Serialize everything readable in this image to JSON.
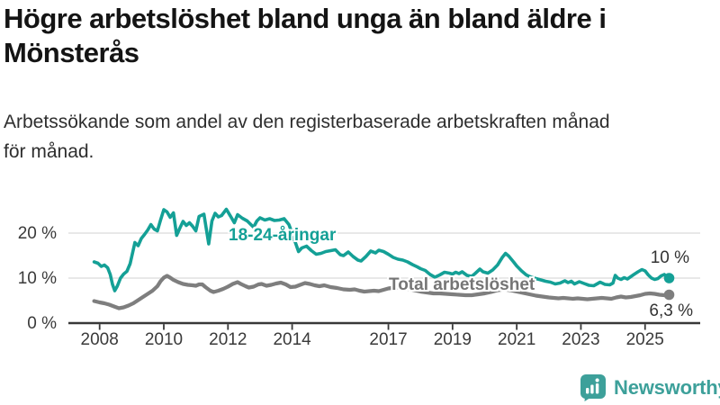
{
  "header": {
    "title_line1": "Högre arbetslöshet bland unga än bland äldre i",
    "title_line2": "Mönsterås",
    "subtitle_line1": "Arbetssökande som andel av den registerbaserade arbetskraften månad",
    "subtitle_line2": "för månad."
  },
  "footer": {
    "brand": "Newsworthy",
    "brand_color": "#3da09a"
  },
  "chart_data": {
    "type": "line",
    "title": "Högre arbetslöshet bland unga än bland äldre i Mönsterås",
    "subtitle": "Arbetssökande som andel av den registerbaserade arbetskraften månad för månad.",
    "xlabel": "",
    "ylabel": "",
    "unit": "%",
    "grid": "horizontal",
    "grid_color": "#d9d9d9",
    "axis_color": "#383838",
    "xlim": [
      2007.7,
      2026.1
    ],
    "ylim": [
      0,
      27
    ],
    "x_ticks": [
      2008,
      2010,
      2012,
      2014,
      2017,
      2019,
      2021,
      2023,
      2025
    ],
    "y_ticks": [
      {
        "value": 0,
        "label": "0 %"
      },
      {
        "value": 10,
        "label": "10 %"
      },
      {
        "value": 20,
        "label": "20 %"
      }
    ],
    "legend": "inline-labels",
    "series": [
      {
        "name": "18-24-åringar",
        "color": "#14a096",
        "end_label": "10 %",
        "last_value": "10 %",
        "points": [
          [
            2007.83,
            13.6
          ],
          [
            2007.95,
            13.3
          ],
          [
            2008.05,
            12.6
          ],
          [
            2008.15,
            12.9
          ],
          [
            2008.25,
            12.3
          ],
          [
            2008.33,
            10.8
          ],
          [
            2008.4,
            8.6
          ],
          [
            2008.47,
            7.2
          ],
          [
            2008.55,
            8.2
          ],
          [
            2008.65,
            10.0
          ],
          [
            2008.75,
            10.9
          ],
          [
            2008.85,
            11.5
          ],
          [
            2008.95,
            13.2
          ],
          [
            2009.1,
            17.9
          ],
          [
            2009.2,
            17.2
          ],
          [
            2009.3,
            18.8
          ],
          [
            2009.4,
            19.7
          ],
          [
            2009.5,
            20.7
          ],
          [
            2009.6,
            21.9
          ],
          [
            2009.7,
            20.9
          ],
          [
            2009.8,
            20.5
          ],
          [
            2009.9,
            22.9
          ],
          [
            2010.0,
            25.2
          ],
          [
            2010.1,
            24.7
          ],
          [
            2010.2,
            23.5
          ],
          [
            2010.3,
            24.5
          ],
          [
            2010.4,
            19.5
          ],
          [
            2010.5,
            21.1
          ],
          [
            2010.6,
            22.6
          ],
          [
            2010.7,
            21.7
          ],
          [
            2010.8,
            22.3
          ],
          [
            2010.9,
            21.5
          ],
          [
            2011.0,
            20.5
          ],
          [
            2011.1,
            23.7
          ],
          [
            2011.25,
            24.2
          ],
          [
            2011.4,
            17.6
          ],
          [
            2011.5,
            22.7
          ],
          [
            2011.6,
            24.4
          ],
          [
            2011.7,
            23.6
          ],
          [
            2011.8,
            23.9
          ],
          [
            2011.95,
            25.3
          ],
          [
            2012.1,
            23.5
          ],
          [
            2012.2,
            22.3
          ],
          [
            2012.3,
            24.1
          ],
          [
            2012.45,
            23.3
          ],
          [
            2012.6,
            22.7
          ],
          [
            2012.8,
            21.3
          ],
          [
            2012.9,
            22.7
          ],
          [
            2013.0,
            23.4
          ],
          [
            2013.15,
            22.9
          ],
          [
            2013.3,
            23.2
          ],
          [
            2013.45,
            22.8
          ],
          [
            2013.6,
            22.9
          ],
          [
            2013.75,
            23.2
          ],
          [
            2013.9,
            21.9
          ],
          [
            2014.0,
            20.0
          ],
          [
            2014.1,
            17.9
          ],
          [
            2014.2,
            15.9
          ],
          [
            2014.3,
            16.7
          ],
          [
            2014.45,
            17.1
          ],
          [
            2014.6,
            16.1
          ],
          [
            2014.75,
            15.3
          ],
          [
            2014.9,
            15.5
          ],
          [
            2015.05,
            15.9
          ],
          [
            2015.2,
            16.1
          ],
          [
            2015.35,
            16.3
          ],
          [
            2015.5,
            15.2
          ],
          [
            2015.6,
            15.0
          ],
          [
            2015.75,
            15.8
          ],
          [
            2015.9,
            14.8
          ],
          [
            2016.05,
            14.0
          ],
          [
            2016.15,
            13.8
          ],
          [
            2016.3,
            14.8
          ],
          [
            2016.45,
            16.0
          ],
          [
            2016.6,
            15.6
          ],
          [
            2016.7,
            16.2
          ],
          [
            2016.85,
            15.9
          ],
          [
            2017.0,
            15.3
          ],
          [
            2017.15,
            14.6
          ],
          [
            2017.3,
            14.2
          ],
          [
            2017.45,
            14.0
          ],
          [
            2017.6,
            13.6
          ],
          [
            2017.75,
            13.0
          ],
          [
            2017.9,
            12.5
          ],
          [
            2018.0,
            12.1
          ],
          [
            2018.15,
            11.7
          ],
          [
            2018.3,
            10.8
          ],
          [
            2018.45,
            10.2
          ],
          [
            2018.6,
            10.7
          ],
          [
            2018.75,
            11.3
          ],
          [
            2018.9,
            11.1
          ],
          [
            2019.0,
            10.9
          ],
          [
            2019.1,
            11.3
          ],
          [
            2019.2,
            11.0
          ],
          [
            2019.3,
            11.4
          ],
          [
            2019.45,
            10.6
          ],
          [
            2019.6,
            10.4
          ],
          [
            2019.7,
            11.0
          ],
          [
            2019.85,
            12.0
          ],
          [
            2019.95,
            11.4
          ],
          [
            2020.1,
            11.1
          ],
          [
            2020.25,
            11.8
          ],
          [
            2020.4,
            12.9
          ],
          [
            2020.55,
            14.6
          ],
          [
            2020.65,
            15.5
          ],
          [
            2020.75,
            14.9
          ],
          [
            2020.9,
            13.6
          ],
          [
            2021.0,
            12.7
          ],
          [
            2021.15,
            11.6
          ],
          [
            2021.3,
            10.7
          ],
          [
            2021.45,
            10.2
          ],
          [
            2021.6,
            9.9
          ],
          [
            2021.75,
            9.6
          ],
          [
            2021.9,
            9.3
          ],
          [
            2022.05,
            9.1
          ],
          [
            2022.2,
            8.7
          ],
          [
            2022.35,
            8.9
          ],
          [
            2022.5,
            9.4
          ],
          [
            2022.6,
            9.0
          ],
          [
            2022.7,
            9.3
          ],
          [
            2022.8,
            8.7
          ],
          [
            2022.95,
            9.2
          ],
          [
            2023.1,
            8.8
          ],
          [
            2023.25,
            8.4
          ],
          [
            2023.4,
            8.3
          ],
          [
            2023.5,
            8.7
          ],
          [
            2023.6,
            9.1
          ],
          [
            2023.75,
            8.6
          ],
          [
            2023.9,
            8.5
          ],
          [
            2024.0,
            8.9
          ],
          [
            2024.07,
            10.6
          ],
          [
            2024.15,
            10.0
          ],
          [
            2024.25,
            9.7
          ],
          [
            2024.35,
            10.1
          ],
          [
            2024.45,
            9.8
          ],
          [
            2024.55,
            10.3
          ],
          [
            2024.65,
            10.8
          ],
          [
            2024.78,
            11.4
          ],
          [
            2024.9,
            11.9
          ],
          [
            2025.0,
            11.6
          ],
          [
            2025.1,
            10.7
          ],
          [
            2025.2,
            10.0
          ],
          [
            2025.3,
            9.7
          ],
          [
            2025.4,
            9.9
          ],
          [
            2025.5,
            10.5
          ],
          [
            2025.6,
            10.8
          ],
          [
            2025.68,
            10.3
          ],
          [
            2025.75,
            10.0
          ]
        ]
      },
      {
        "name": "Total arbetslöshet",
        "color": "#7e7e7e",
        "label_color": "#757575",
        "end_label": "6,3 %",
        "last_value": "6,3 %",
        "points": [
          [
            2007.83,
            4.9
          ],
          [
            2008.0,
            4.6
          ],
          [
            2008.15,
            4.4
          ],
          [
            2008.3,
            4.1
          ],
          [
            2008.45,
            3.7
          ],
          [
            2008.6,
            3.3
          ],
          [
            2008.75,
            3.5
          ],
          [
            2008.9,
            3.9
          ],
          [
            2009.05,
            4.4
          ],
          [
            2009.2,
            5.1
          ],
          [
            2009.35,
            5.8
          ],
          [
            2009.5,
            6.5
          ],
          [
            2009.65,
            7.2
          ],
          [
            2009.8,
            8.2
          ],
          [
            2009.9,
            9.3
          ],
          [
            2010.0,
            10.1
          ],
          [
            2010.1,
            10.5
          ],
          [
            2010.2,
            10.1
          ],
          [
            2010.3,
            9.6
          ],
          [
            2010.45,
            9.1
          ],
          [
            2010.6,
            8.7
          ],
          [
            2010.75,
            8.5
          ],
          [
            2010.9,
            8.4
          ],
          [
            2011.0,
            8.3
          ],
          [
            2011.1,
            8.6
          ],
          [
            2011.2,
            8.6
          ],
          [
            2011.3,
            8.0
          ],
          [
            2011.45,
            7.2
          ],
          [
            2011.55,
            6.9
          ],
          [
            2011.7,
            7.2
          ],
          [
            2011.85,
            7.6
          ],
          [
            2012.0,
            8.1
          ],
          [
            2012.15,
            8.7
          ],
          [
            2012.3,
            9.1
          ],
          [
            2012.4,
            8.7
          ],
          [
            2012.55,
            8.2
          ],
          [
            2012.65,
            7.9
          ],
          [
            2012.8,
            8.1
          ],
          [
            2012.95,
            8.6
          ],
          [
            2013.05,
            8.7
          ],
          [
            2013.2,
            8.3
          ],
          [
            2013.35,
            8.5
          ],
          [
            2013.5,
            8.8
          ],
          [
            2013.65,
            9.0
          ],
          [
            2013.8,
            8.6
          ],
          [
            2013.95,
            8.0
          ],
          [
            2014.1,
            8.1
          ],
          [
            2014.25,
            8.5
          ],
          [
            2014.4,
            8.9
          ],
          [
            2014.55,
            8.7
          ],
          [
            2014.7,
            8.4
          ],
          [
            2014.85,
            8.2
          ],
          [
            2015.0,
            8.4
          ],
          [
            2015.2,
            8.0
          ],
          [
            2015.4,
            7.8
          ],
          [
            2015.6,
            7.5
          ],
          [
            2015.8,
            7.4
          ],
          [
            2015.95,
            7.5
          ],
          [
            2016.1,
            7.2
          ],
          [
            2016.25,
            7.0
          ],
          [
            2016.4,
            7.1
          ],
          [
            2016.55,
            7.2
          ],
          [
            2016.7,
            7.1
          ],
          [
            2016.85,
            7.4
          ],
          [
            2017.0,
            7.7
          ],
          [
            2017.2,
            7.9
          ],
          [
            2017.4,
            7.8
          ],
          [
            2017.6,
            7.6
          ],
          [
            2017.8,
            7.3
          ],
          [
            2018.0,
            7.0
          ],
          [
            2018.2,
            6.8
          ],
          [
            2018.4,
            6.6
          ],
          [
            2018.6,
            6.6
          ],
          [
            2018.8,
            6.5
          ],
          [
            2019.0,
            6.4
          ],
          [
            2019.2,
            6.3
          ],
          [
            2019.4,
            6.2
          ],
          [
            2019.6,
            6.2
          ],
          [
            2019.8,
            6.4
          ],
          [
            2020.0,
            6.6
          ],
          [
            2020.2,
            6.9
          ],
          [
            2020.4,
            7.3
          ],
          [
            2020.6,
            7.5
          ],
          [
            2020.8,
            7.3
          ],
          [
            2021.0,
            7.0
          ],
          [
            2021.2,
            6.7
          ],
          [
            2021.4,
            6.4
          ],
          [
            2021.6,
            6.1
          ],
          [
            2021.8,
            5.9
          ],
          [
            2022.0,
            5.7
          ],
          [
            2022.15,
            5.6
          ],
          [
            2022.3,
            5.5
          ],
          [
            2022.45,
            5.6
          ],
          [
            2022.6,
            5.5
          ],
          [
            2022.75,
            5.4
          ],
          [
            2022.9,
            5.5
          ],
          [
            2023.05,
            5.4
          ],
          [
            2023.2,
            5.3
          ],
          [
            2023.35,
            5.4
          ],
          [
            2023.5,
            5.5
          ],
          [
            2023.65,
            5.6
          ],
          [
            2023.8,
            5.5
          ],
          [
            2023.95,
            5.4
          ],
          [
            2024.1,
            5.7
          ],
          [
            2024.25,
            5.9
          ],
          [
            2024.4,
            5.7
          ],
          [
            2024.55,
            5.8
          ],
          [
            2024.7,
            6.0
          ],
          [
            2024.85,
            6.2
          ],
          [
            2025.0,
            6.5
          ],
          [
            2025.15,
            6.6
          ],
          [
            2025.3,
            6.5
          ],
          [
            2025.45,
            6.3
          ],
          [
            2025.6,
            6.2
          ],
          [
            2025.75,
            6.3
          ]
        ]
      }
    ]
  }
}
